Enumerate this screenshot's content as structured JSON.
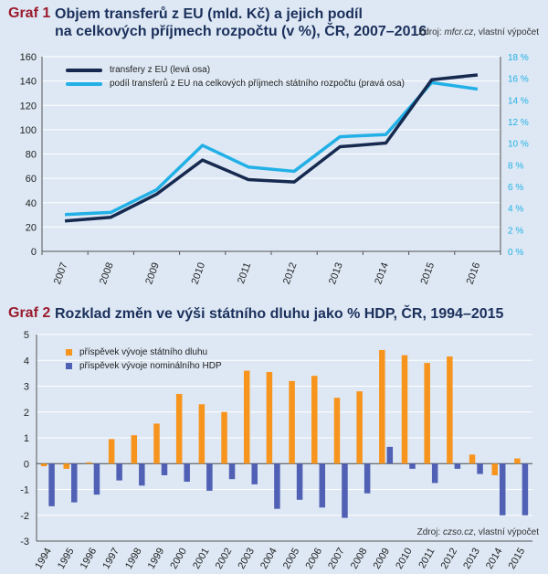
{
  "graf1": {
    "number": "Graf 1",
    "title_line1": "Objem transferů z EU (mld. Kč) a jejich podíl",
    "title_line2": "na celkových příjmech rozpočtu (v %), ČR, 2007–2016",
    "source_prefix": "Zdroj: ",
    "source_italic": "mfcr.cz",
    "source_suffix": ", vlastní výpočet"
  },
  "graf2": {
    "number": "Graf 2",
    "title": "Rozklad změn ve výši státního dluhu jako % HDP, ČR, 1994–2015",
    "source_prefix": "Zdroj: ",
    "source_italic": "czso.cz",
    "source_suffix": ", vlastní výpočet"
  },
  "colors": {
    "dark_navy": "#16294f",
    "light_blue": "#22b0e6",
    "orange": "#f7941d",
    "purple_blue": "#5060b4",
    "title_red": "#9b1c2e",
    "title_navy": "#1b2f5b",
    "background": "#dde8f4"
  },
  "chart_data": [
    {
      "type": "line",
      "x": [
        "2007",
        "2008",
        "2009",
        "2010",
        "2011",
        "2012",
        "2013",
        "2014",
        "2015",
        "2016"
      ],
      "series": [
        {
          "name": "transfery z EU (levá osa)",
          "axis": "left",
          "values": [
            25,
            28,
            47,
            75,
            59,
            57,
            86,
            89,
            141,
            145
          ]
        },
        {
          "name": "podíl transferů z EU na celkových příjmech státního rozpočtu (pravá osa)",
          "axis": "right",
          "values": [
            3.4,
            3.6,
            5.7,
            9.8,
            7.8,
            7.4,
            10.6,
            10.8,
            15.6,
            15.0
          ]
        }
      ],
      "ylim_left": [
        0,
        160
      ],
      "yticks_left": [
        "0",
        "20",
        "40",
        "60",
        "80",
        "100",
        "120",
        "140",
        "160"
      ],
      "ylim_right": [
        0,
        18
      ],
      "yticks_right": [
        "0 %",
        "2 %",
        "4 %",
        "6 %",
        "8 %",
        "10 %",
        "12 %",
        "14 %",
        "16 %",
        "18 %"
      ],
      "legend": "top-left",
      "grid": true
    },
    {
      "type": "bar",
      "categories": [
        "1994",
        "1995",
        "1996",
        "1997",
        "1998",
        "1999",
        "2000",
        "2001",
        "2002",
        "2003",
        "2004",
        "2005",
        "2006",
        "2007",
        "2008",
        "2009",
        "2010",
        "2011",
        "2012",
        "2013",
        "2014",
        "2015"
      ],
      "series": [
        {
          "name": "příspěvek vývoje státního dluhu",
          "values": [
            -0.1,
            -0.2,
            0.05,
            0.95,
            1.1,
            1.55,
            2.7,
            2.3,
            2.0,
            3.6,
            3.55,
            3.2,
            3.4,
            2.55,
            2.8,
            4.4,
            4.2,
            3.9,
            4.15,
            0.35,
            -0.45,
            0.2
          ]
        },
        {
          "name": "příspěvek vývoje nominálního HDP",
          "values": [
            -1.65,
            -1.5,
            -1.2,
            -0.65,
            -0.85,
            -0.45,
            -0.7,
            -1.05,
            -0.6,
            -0.8,
            -1.75,
            -1.4,
            -1.7,
            -2.1,
            -1.15,
            0.65,
            -0.2,
            -0.75,
            -0.2,
            -0.4,
            -2.0,
            -2.0
          ]
        }
      ],
      "ylim": [
        -3,
        5
      ],
      "yticks": [
        "-3",
        "-2",
        "-1",
        "0",
        "1",
        "2",
        "3",
        "4",
        "5"
      ],
      "legend": "top-left",
      "grid": true
    }
  ]
}
